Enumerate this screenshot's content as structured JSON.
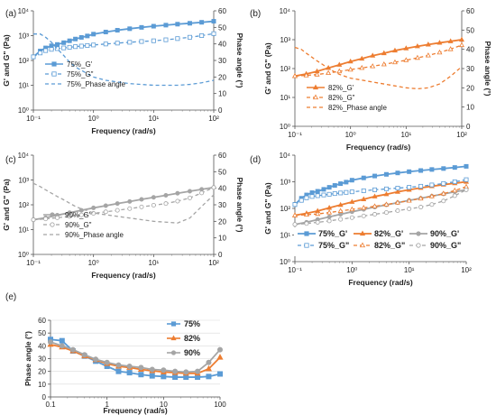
{
  "colors": {
    "blue": "#5b9bd5",
    "orange": "#ed7d31",
    "gray": "#a5a5a5"
  },
  "chart_data": [
    {
      "type": "line",
      "panel_label": "(a)",
      "xlabel": "Frequency (rad/s)",
      "ylabel": "G' and G\" (Pa)",
      "y2label": "Phase angle (°)",
      "x_scale": "log",
      "y_scale": "log",
      "y2_scale": "linear",
      "xlim": [
        0.1,
        100
      ],
      "ylim": [
        1,
        10000
      ],
      "y2lim": [
        0,
        60
      ],
      "x_ticks": [
        "10⁻¹",
        "10⁰",
        "10¹",
        "10²"
      ],
      "y_ticks": [
        "10⁰",
        "10¹",
        "10²",
        "10³",
        "10⁴"
      ],
      "y2_ticks": [
        "0",
        "10",
        "20",
        "30",
        "40",
        "50",
        "60"
      ],
      "legend_position": "left",
      "series": [
        {
          "name": "75%_G'",
          "color": "blue",
          "line": "solid",
          "marker": "square",
          "filled": true,
          "axis": "left",
          "x": [
            0.1,
            0.13,
            0.16,
            0.2,
            0.25,
            0.32,
            0.4,
            0.5,
            0.63,
            0.79,
            1,
            1.6,
            2.5,
            4,
            6.3,
            10,
            16,
            25,
            40,
            63,
            100
          ],
          "y": [
            140,
            240,
            320,
            390,
            440,
            520,
            620,
            730,
            850,
            970,
            1150,
            1400,
            1650,
            1900,
            2150,
            2400,
            2650,
            2900,
            3150,
            3450,
            3800
          ]
        },
        {
          "name": "75%_G\"",
          "color": "blue",
          "line": "dashed",
          "marker": "square",
          "filled": false,
          "axis": "left",
          "x": [
            0.1,
            0.13,
            0.16,
            0.2,
            0.25,
            0.32,
            0.4,
            0.5,
            0.63,
            0.79,
            1,
            1.6,
            2.5,
            4,
            6.3,
            10,
            16,
            25,
            40,
            63,
            100
          ],
          "y": [
            140,
            200,
            250,
            280,
            300,
            320,
            340,
            360,
            380,
            400,
            420,
            460,
            500,
            540,
            580,
            620,
            680,
            760,
            860,
            1000,
            1200
          ]
        },
        {
          "name": "75%_Phase angle",
          "color": "blue",
          "line": "dashed",
          "marker": "none",
          "axis": "right",
          "x": [
            0.1,
            0.13,
            0.16,
            0.2,
            0.25,
            0.32,
            0.4,
            0.5,
            0.63,
            0.79,
            1,
            1.6,
            2.5,
            4,
            6.3,
            10,
            16,
            25,
            40,
            63,
            100
          ],
          "y": [
            46,
            46,
            44,
            41,
            37,
            33,
            29,
            26,
            24,
            22,
            20,
            18,
            17,
            16,
            15.5,
            15,
            15,
            15,
            15.5,
            16.5,
            18
          ]
        }
      ]
    },
    {
      "type": "line",
      "panel_label": "(b)",
      "xlabel": "Frequency (rad/s)",
      "ylabel": "G' and G\" (Pa)",
      "y2label": "Phase angle (°)",
      "x_scale": "log",
      "y_scale": "log",
      "y2_scale": "linear",
      "xlim": [
        0.1,
        100
      ],
      "ylim": [
        1,
        10000
      ],
      "y2lim": [
        0,
        60
      ],
      "x_ticks": [
        "10⁻¹",
        "10⁰",
        "10¹",
        "10²"
      ],
      "y_ticks": [
        "10⁰",
        "10¹",
        "10²",
        "10³",
        "10⁴"
      ],
      "y2_ticks": [
        "0",
        "10",
        "20",
        "30",
        "40",
        "50",
        "60"
      ],
      "legend_position": "left",
      "series": [
        {
          "name": "82%_G'",
          "color": "orange",
          "line": "solid",
          "marker": "triangle",
          "filled": true,
          "axis": "left",
          "x": [
            0.1,
            0.16,
            0.25,
            0.4,
            0.63,
            1,
            1.6,
            2.5,
            4,
            6.3,
            10,
            16,
            25,
            40,
            63,
            100
          ],
          "y": [
            55,
            65,
            80,
            105,
            135,
            175,
            220,
            280,
            340,
            420,
            500,
            590,
            680,
            780,
            880,
            1000
          ]
        },
        {
          "name": "82%_G\"",
          "color": "orange",
          "line": "dashed",
          "marker": "triangle",
          "filled": false,
          "axis": "left",
          "x": [
            0.1,
            0.16,
            0.25,
            0.4,
            0.63,
            1,
            1.6,
            2.5,
            4,
            6.3,
            10,
            16,
            25,
            40,
            63,
            100
          ],
          "y": [
            55,
            58,
            62,
            70,
            80,
            92,
            105,
            120,
            140,
            165,
            195,
            235,
            285,
            360,
            470,
            650
          ]
        },
        {
          "name": "82%_Phase angle",
          "color": "orange",
          "line": "dashed",
          "marker": "none",
          "axis": "right",
          "x": [
            0.1,
            0.13,
            0.16,
            0.2,
            0.25,
            0.32,
            0.4,
            0.5,
            0.63,
            0.79,
            1,
            1.6,
            2.5,
            4,
            6.3,
            10,
            16,
            25,
            40,
            63,
            100
          ],
          "y": [
            41,
            40,
            38,
            36,
            34,
            32,
            30,
            28.5,
            27,
            26,
            25,
            24,
            23,
            22,
            21,
            20,
            19.5,
            20,
            22,
            26,
            31
          ]
        }
      ]
    },
    {
      "type": "line",
      "panel_label": "(c)",
      "xlabel": "Frequency (rad/s)",
      "ylabel": "G' and G\" (Pa)",
      "y2label": "Phase angle (°)",
      "x_scale": "log",
      "y_scale": "log",
      "y2_scale": "linear",
      "xlim": [
        0.1,
        100
      ],
      "ylim": [
        1,
        10000
      ],
      "y2lim": [
        0,
        60
      ],
      "x_ticks": [
        "10⁻¹",
        "10⁰",
        "10¹",
        "10²"
      ],
      "y_ticks": [
        "10⁰",
        "10¹",
        "10²",
        "10³",
        "10⁴"
      ],
      "y2_ticks": [
        "0",
        "10",
        "20",
        "30",
        "40",
        "50",
        "60"
      ],
      "legend_position": "left",
      "series": [
        {
          "name": "90%_G'",
          "color": "gray",
          "line": "solid",
          "marker": "circle",
          "filled": true,
          "axis": "left",
          "x": [
            0.1,
            0.16,
            0.25,
            0.4,
            0.63,
            1,
            1.6,
            2.5,
            4,
            6.3,
            10,
            16,
            25,
            40,
            63,
            100
          ],
          "y": [
            25,
            30,
            38,
            48,
            60,
            75,
            92,
            112,
            135,
            165,
            200,
            240,
            290,
            350,
            420,
            500
          ]
        },
        {
          "name": "90%_G\"",
          "color": "gray",
          "line": "dashed",
          "marker": "circle",
          "filled": false,
          "axis": "left",
          "x": [
            0.1,
            0.16,
            0.25,
            0.4,
            0.63,
            1,
            1.6,
            2.5,
            4,
            6.3,
            10,
            16,
            25,
            40,
            63,
            100
          ],
          "y": [
            25,
            27,
            30,
            34,
            39,
            45,
            52,
            60,
            70,
            82,
            96,
            112,
            140,
            190,
            300,
            500
          ]
        },
        {
          "name": "90%_Phase angle",
          "color": "gray",
          "line": "dashed",
          "marker": "none",
          "axis": "right",
          "x": [
            0.1,
            0.13,
            0.16,
            0.2,
            0.25,
            0.32,
            0.4,
            0.5,
            0.63,
            0.79,
            1,
            1.6,
            2.5,
            4,
            6.3,
            10,
            16,
            25,
            40,
            63,
            100
          ],
          "y": [
            43,
            41,
            39,
            37,
            35,
            33,
            31,
            29,
            27.5,
            26.5,
            25,
            24,
            23,
            22,
            21,
            20,
            19.5,
            19,
            22,
            29,
            36
          ]
        }
      ]
    },
    {
      "type": "line",
      "panel_label": "(d)",
      "xlabel": "Frequency (rad/s)",
      "ylabel": "G' and G\" (Pa)",
      "x_scale": "log",
      "y_scale": "log",
      "xlim": [
        0.1,
        100
      ],
      "ylim": [
        1,
        10000
      ],
      "x_ticks": [
        "10⁻¹",
        "10⁰",
        "10¹",
        "10²"
      ],
      "y_ticks": [
        "10⁰",
        "10¹",
        "10²",
        "10³",
        "10⁴"
      ],
      "legend_position": "bottom",
      "series": [
        {
          "name": "75%_G'",
          "color": "blue",
          "line": "solid",
          "marker": "square",
          "filled": true,
          "x": [
            0.1,
            0.13,
            0.16,
            0.2,
            0.25,
            0.32,
            0.4,
            0.5,
            0.63,
            0.79,
            1,
            1.6,
            2.5,
            4,
            6.3,
            10,
            16,
            25,
            40,
            63,
            100
          ],
          "y": [
            140,
            240,
            320,
            390,
            440,
            520,
            620,
            730,
            850,
            970,
            1150,
            1400,
            1650,
            1900,
            2150,
            2400,
            2650,
            2900,
            3150,
            3450,
            3800
          ]
        },
        {
          "name": "82%_G'",
          "color": "orange",
          "line": "solid",
          "marker": "triangle",
          "filled": true,
          "x": [
            0.1,
            0.16,
            0.25,
            0.4,
            0.63,
            1,
            1.6,
            2.5,
            4,
            6.3,
            10,
            16,
            25,
            40,
            63,
            100
          ],
          "y": [
            55,
            65,
            80,
            105,
            135,
            175,
            220,
            280,
            340,
            420,
            500,
            590,
            680,
            780,
            880,
            1000
          ]
        },
        {
          "name": "90%_G'",
          "color": "gray",
          "line": "solid",
          "marker": "circle",
          "filled": true,
          "x": [
            0.1,
            0.16,
            0.25,
            0.4,
            0.63,
            1,
            1.6,
            2.5,
            4,
            6.3,
            10,
            16,
            25,
            40,
            63,
            100
          ],
          "y": [
            25,
            30,
            38,
            48,
            60,
            75,
            92,
            112,
            135,
            165,
            200,
            240,
            290,
            350,
            420,
            500
          ]
        },
        {
          "name": "75%_G\"",
          "color": "blue",
          "line": "dashed",
          "marker": "square",
          "filled": false,
          "x": [
            0.1,
            0.13,
            0.16,
            0.2,
            0.25,
            0.32,
            0.4,
            0.5,
            0.63,
            0.79,
            1,
            1.6,
            2.5,
            4,
            6.3,
            10,
            16,
            25,
            40,
            63,
            100
          ],
          "y": [
            140,
            200,
            250,
            280,
            300,
            320,
            340,
            360,
            380,
            400,
            420,
            460,
            500,
            540,
            580,
            620,
            680,
            760,
            860,
            1000,
            1200
          ]
        },
        {
          "name": "82%_G\"",
          "color": "orange",
          "line": "dashed",
          "marker": "triangle",
          "filled": false,
          "x": [
            0.1,
            0.16,
            0.25,
            0.4,
            0.63,
            1,
            1.6,
            2.5,
            4,
            6.3,
            10,
            16,
            25,
            40,
            63,
            100
          ],
          "y": [
            55,
            58,
            62,
            70,
            80,
            92,
            105,
            120,
            140,
            165,
            195,
            235,
            285,
            360,
            470,
            650
          ]
        },
        {
          "name": "90%_G\"",
          "color": "gray",
          "line": "dashed",
          "marker": "circle",
          "filled": false,
          "x": [
            0.1,
            0.16,
            0.25,
            0.4,
            0.63,
            1,
            1.6,
            2.5,
            4,
            6.3,
            10,
            16,
            25,
            40,
            63,
            100
          ],
          "y": [
            25,
            27,
            30,
            34,
            39,
            45,
            52,
            60,
            70,
            82,
            96,
            112,
            140,
            190,
            300,
            500
          ]
        }
      ]
    },
    {
      "type": "line",
      "panel_label": "(e)",
      "xlabel": "Frequency (rad/s)",
      "ylabel": "Phase angle (°)",
      "x_scale": "log",
      "y_scale": "linear",
      "xlim": [
        0.1,
        100
      ],
      "ylim": [
        0,
        60
      ],
      "x_ticks": [
        "0.1",
        "1",
        "10",
        "100"
      ],
      "y_ticks": [
        "0",
        "10",
        "20",
        "30",
        "40",
        "50",
        "60"
      ],
      "legend_position": "right",
      "series": [
        {
          "name": "75%",
          "color": "blue",
          "line": "solid",
          "marker": "square",
          "filled": true,
          "x": [
            0.1,
            0.16,
            0.25,
            0.4,
            0.63,
            1,
            1.6,
            2.5,
            4,
            6.3,
            10,
            16,
            25,
            40,
            63,
            100
          ],
          "y": [
            45,
            44,
            36,
            32,
            28,
            24,
            20,
            19,
            17.5,
            16.5,
            16,
            15.5,
            15.5,
            15.5,
            16,
            18
          ]
        },
        {
          "name": "82%",
          "color": "orange",
          "line": "solid",
          "marker": "triangle",
          "filled": true,
          "x": [
            0.1,
            0.16,
            0.25,
            0.4,
            0.63,
            1,
            1.6,
            2.5,
            4,
            6.3,
            10,
            16,
            25,
            40,
            63,
            100
          ],
          "y": [
            41,
            39,
            36,
            32,
            29,
            26,
            24,
            23,
            21.5,
            20.5,
            19.5,
            19,
            18.5,
            18.5,
            22,
            31
          ]
        },
        {
          "name": "90%",
          "color": "gray",
          "line": "solid",
          "marker": "circle",
          "filled": true,
          "x": [
            0.1,
            0.16,
            0.25,
            0.4,
            0.63,
            1,
            1.6,
            2.5,
            4,
            6.3,
            10,
            16,
            25,
            40,
            63,
            100
          ],
          "y": [
            43,
            40,
            37,
            33,
            29.5,
            27,
            25,
            24,
            23,
            21.5,
            21,
            20,
            19.5,
            20,
            27,
            37
          ]
        }
      ]
    }
  ]
}
